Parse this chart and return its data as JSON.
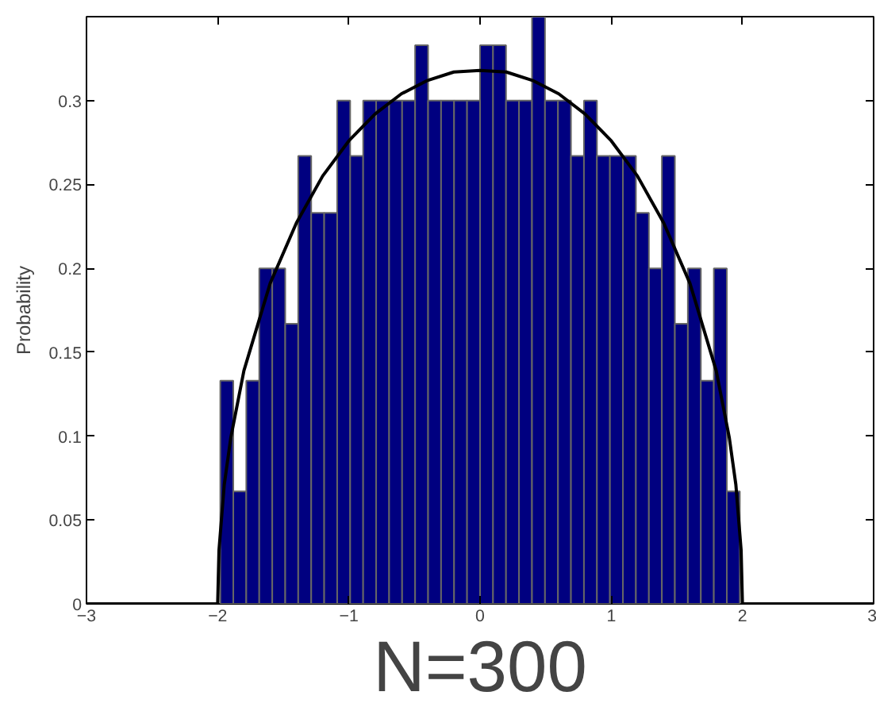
{
  "chart_data": {
    "type": "histogram",
    "xlabel": "N=300",
    "ylabel": "Probability",
    "bins": [
      -1.98,
      -1.881,
      -1.782,
      -1.683,
      -1.584,
      -1.485,
      -1.386,
      -1.287,
      -1.188,
      -1.089,
      -0.99,
      -0.891,
      -0.792,
      -0.693,
      -0.594,
      -0.495,
      -0.396,
      -0.297,
      -0.198,
      -0.099,
      0,
      0.099,
      0.198,
      0.297,
      0.396,
      0.495,
      0.594,
      0.693,
      0.792,
      0.891,
      0.99,
      1.089,
      1.188,
      1.287,
      1.386,
      1.485,
      1.584,
      1.683,
      1.782,
      1.881,
      1.98
    ],
    "values": [
      0.133,
      0.067,
      0.133,
      0.2,
      0.2,
      0.167,
      0.267,
      0.233,
      0.233,
      0.3,
      0.267,
      0.3,
      0.3,
      0.3,
      0.3,
      0.333,
      0.3,
      0.3,
      0.3,
      0.3,
      0.333,
      0.333,
      0.3,
      0.3,
      0.35,
      0.3,
      0.3,
      0.267,
      0.3,
      0.267,
      0.267,
      0.267,
      0.233,
      0.2,
      0.267,
      0.167,
      0.2,
      0.133,
      0.2,
      0.067
    ],
    "color": "#000080",
    "series": [
      {
        "type": "line",
        "color": "#000000",
        "x": [
          -3,
          -2,
          -1.99,
          -1.95,
          -1.9,
          -1.8,
          -1.6,
          -1.4,
          -1.2,
          -1,
          -0.8,
          -0.6,
          -0.4,
          -0.2,
          0,
          0.2,
          0.4,
          0.6,
          0.8,
          1,
          1.2,
          1.4,
          1.6,
          1.8,
          1.9,
          1.95,
          1.99,
          2,
          3
        ],
        "values": [
          0,
          0,
          0.032,
          0.071,
          0.099,
          0.139,
          0.191,
          0.227,
          0.255,
          0.276,
          0.292,
          0.304,
          0.312,
          0.317,
          0.318,
          0.317,
          0.312,
          0.304,
          0.292,
          0.276,
          0.255,
          0.227,
          0.191,
          0.139,
          0.099,
          0.071,
          0.032,
          0,
          0
        ]
      }
    ],
    "xlim": [
      -3,
      3
    ],
    "ylim": [
      0,
      0.35
    ],
    "xticks": [
      {
        "value": -3,
        "label": "−3"
      },
      {
        "value": -2,
        "label": "−2"
      },
      {
        "value": -1,
        "label": "−1"
      },
      0,
      1,
      2,
      3
    ],
    "yticks": [
      0,
      0.05,
      0.1,
      0.15,
      0.2,
      0.25,
      0.3
    ],
    "grid": false
  }
}
